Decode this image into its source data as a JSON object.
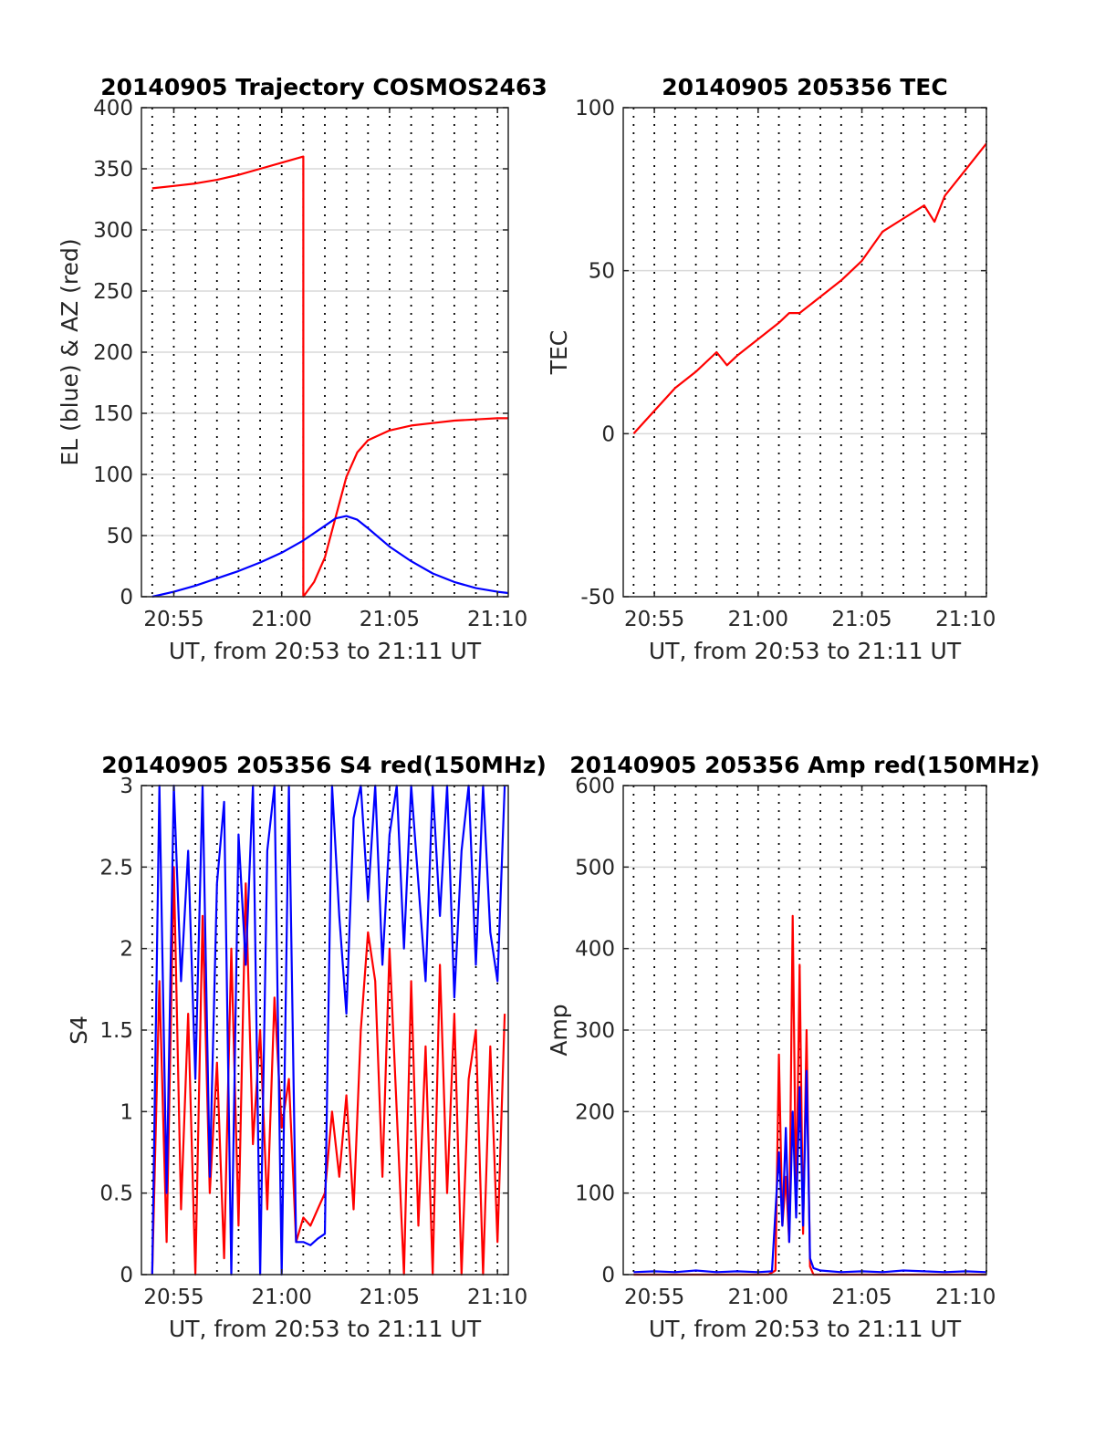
{
  "figure": {
    "background": "#ffffff",
    "grid_color": "#d9d9d9",
    "vline_color": "#000000"
  },
  "chart_data": [
    {
      "id": "p1",
      "type": "line",
      "title": "20140905 Trajectory COSMOS2463",
      "xlabel": "UT, from 20:53 to 21:11 UT",
      "ylabel": "EL (blue) & AZ (red)",
      "xlim": [
        "20:53:30",
        "21:10:30"
      ],
      "ylim": [
        0,
        400
      ],
      "yticks": [
        "0",
        "50",
        "100",
        "150",
        "200",
        "250",
        "300",
        "350",
        "400"
      ],
      "xticks": [
        {
          "t": "20:55",
          "label": "20:55"
        },
        {
          "t": "21:00",
          "label": "21:00"
        },
        {
          "t": "21:05",
          "label": "21:05"
        },
        {
          "t": "21:10",
          "label": "21:10"
        }
      ],
      "grid": "horizontal",
      "vlines_minute": [
        "20:54",
        "21:10"
      ],
      "series": [
        {
          "color": "#ff0000",
          "x": [
            "20:54",
            "20:55",
            "20:56",
            "20:57",
            "20:58",
            "20:59",
            "21:00",
            "21:01",
            "21:01",
            "21:01:30",
            "21:02",
            "21:02:30",
            "21:03",
            "21:03:30",
            "21:04",
            "21:05",
            "21:06",
            "21:07",
            "21:08",
            "21:09",
            "21:10",
            "21:10:30"
          ],
          "y": [
            334,
            336,
            338,
            341,
            345,
            350,
            355,
            360,
            0,
            12,
            32,
            65,
            98,
            118,
            128,
            136,
            140,
            142,
            144,
            145,
            146,
            146
          ]
        },
        {
          "color": "#0000ff",
          "x": [
            "20:54",
            "20:55",
            "20:56",
            "20:57",
            "20:58",
            "20:59",
            "21:00",
            "21:01",
            "21:02",
            "21:02:30",
            "21:03",
            "21:03:30",
            "21:04",
            "21:05",
            "21:06",
            "21:07",
            "21:08",
            "21:09",
            "21:10",
            "21:10:30"
          ],
          "y": [
            0,
            4,
            9,
            15,
            21,
            28,
            36,
            46,
            58,
            64,
            66,
            63,
            56,
            41,
            29,
            19,
            12,
            7,
            4,
            3
          ]
        }
      ]
    },
    {
      "id": "p2",
      "type": "line",
      "title": "20140905 205356 TEC",
      "xlabel": "UT, from 20:53 to 21:11 UT",
      "ylabel": "TEC",
      "xlim": [
        "20:53:30",
        "21:11:00"
      ],
      "ylim": [
        -50,
        100
      ],
      "yticks": [
        "-50",
        "0",
        "50",
        "100"
      ],
      "xticks": [
        {
          "t": "20:55",
          "label": "20:55"
        },
        {
          "t": "21:00",
          "label": "21:00"
        },
        {
          "t": "21:05",
          "label": "21:05"
        },
        {
          "t": "21:10",
          "label": "21:10"
        }
      ],
      "grid": "horizontal",
      "vlines_minute": [
        "20:54",
        "21:11"
      ],
      "series": [
        {
          "color": "#ff0000",
          "x": [
            "20:54",
            "20:55",
            "20:56",
            "20:57",
            "20:58",
            "20:58:30",
            "20:59",
            "21:00",
            "21:01",
            "21:01:30",
            "21:02",
            "21:03",
            "21:04",
            "21:05",
            "21:06",
            "21:07",
            "21:08",
            "21:08:30",
            "21:09",
            "21:10",
            "21:11"
          ],
          "y": [
            0,
            7,
            14,
            19,
            25,
            21,
            24,
            29,
            34,
            37,
            37,
            42,
            47,
            53,
            62,
            66,
            70,
            65,
            73,
            81,
            89
          ]
        }
      ]
    },
    {
      "id": "p3",
      "type": "line",
      "title": "20140905 205356 S4 red(150MHz)",
      "xlabel": "UT, from 20:53 to 21:11 UT",
      "ylabel": "S4",
      "xlim": [
        "20:53:30",
        "21:10:30"
      ],
      "ylim": [
        0,
        3
      ],
      "yticks": [
        "0",
        "0.5",
        "1",
        "1.5",
        "2",
        "2.5",
        "3"
      ],
      "xticks": [
        {
          "t": "20:55",
          "label": "20:55"
        },
        {
          "t": "21:00",
          "label": "21:00"
        },
        {
          "t": "21:05",
          "label": "21:05"
        },
        {
          "t": "21:10",
          "label": "21:10"
        }
      ],
      "grid": "horizontal",
      "vlines_minute": [
        "20:54",
        "21:10"
      ],
      "series": [
        {
          "color": "#ff0000",
          "x": [
            "20:54",
            "20:54:20",
            "20:54:40",
            "20:55",
            "20:55:20",
            "20:55:40",
            "20:56",
            "20:56:20",
            "20:56:40",
            "20:57",
            "20:57:20",
            "20:57:40",
            "20:58",
            "20:58:20",
            "20:58:40",
            "20:59",
            "20:59:20",
            "20:59:40",
            "21:00",
            "21:00:20",
            "21:00:40",
            "21:01",
            "21:01:20",
            "21:01:40",
            "21:02",
            "21:02:20",
            "21:02:40",
            "21:03",
            "21:03:20",
            "21:03:40",
            "21:04",
            "21:04:20",
            "21:04:40",
            "21:05",
            "21:05:20",
            "21:05:40",
            "21:06",
            "21:06:20",
            "21:06:40",
            "21:07",
            "21:07:20",
            "21:07:40",
            "21:08",
            "21:08:20",
            "21:08:40",
            "21:09",
            "21:09:20",
            "21:09:40",
            "21:10",
            "21:10:20"
          ],
          "y": [
            0,
            1.8,
            0.2,
            2.5,
            0.4,
            1.6,
            0,
            2.2,
            0.5,
            1.3,
            0.1,
            2.0,
            0.3,
            2.4,
            0.8,
            1.5,
            0.4,
            1.7,
            0.9,
            1.2,
            0.2,
            0.35,
            0.3,
            0.4,
            0.5,
            1.0,
            0.6,
            1.1,
            0.4,
            1.5,
            2.1,
            1.8,
            0.6,
            2.0,
            1.0,
            0,
            1.8,
            0.3,
            1.4,
            0,
            1.9,
            0.5,
            1.6,
            0,
            1.2,
            1.5,
            0,
            1.4,
            0.2,
            1.6
          ]
        },
        {
          "color": "#0000ff",
          "x": [
            "20:54",
            "20:54:20",
            "20:54:40",
            "20:55",
            "20:55:20",
            "20:55:40",
            "20:56",
            "20:56:20",
            "20:56:40",
            "20:57",
            "20:57:20",
            "20:57:40",
            "20:58",
            "20:58:20",
            "20:58:40",
            "20:59",
            "20:59:20",
            "20:59:40",
            "21:00",
            "21:00:20",
            "21:00:40",
            "21:01",
            "21:01:20",
            "21:01:40",
            "21:02",
            "21:02:20",
            "21:02:40",
            "21:03",
            "21:03:20",
            "21:03:40",
            "21:04",
            "21:04:20",
            "21:04:40",
            "21:05",
            "21:05:20",
            "21:05:40",
            "21:06",
            "21:06:20",
            "21:06:40",
            "21:07",
            "21:07:20",
            "21:07:40",
            "21:08",
            "21:08:20",
            "21:08:40",
            "21:09",
            "21:09:20",
            "21:09:40",
            "21:10",
            "21:10:20"
          ],
          "y": [
            0,
            3,
            0.5,
            3,
            1.8,
            2.6,
            1.2,
            3,
            0.6,
            2.4,
            2.9,
            0,
            2.7,
            1.9,
            3,
            0,
            2.6,
            3,
            0,
            3,
            0.2,
            0.2,
            0.18,
            0.22,
            0.25,
            3,
            2.2,
            1.6,
            2.8,
            3,
            2.3,
            3,
            1.9,
            2.7,
            3,
            2.0,
            3,
            2.4,
            1.8,
            3,
            2.2,
            3,
            1.7,
            2.6,
            3,
            1.9,
            3,
            2.1,
            1.8,
            3
          ]
        }
      ]
    },
    {
      "id": "p4",
      "type": "line",
      "title": "20140905 205356 Amp red(150MHz)",
      "xlabel": "UT, from 20:53 to 21:11 UT",
      "ylabel": "Amp",
      "xlim": [
        "20:53:30",
        "21:11:00"
      ],
      "ylim": [
        0,
        600
      ],
      "yticks": [
        "0",
        "100",
        "200",
        "300",
        "400",
        "500",
        "600"
      ],
      "xticks": [
        {
          "t": "20:55",
          "label": "20:55"
        },
        {
          "t": "21:00",
          "label": "21:00"
        },
        {
          "t": "21:05",
          "label": "21:05"
        },
        {
          "t": "21:10",
          "label": "21:10"
        }
      ],
      "grid": "horizontal",
      "vlines_minute": [
        "20:54",
        "21:11"
      ],
      "series": [
        {
          "color": "#ff0000",
          "x": [
            "20:54",
            "20:58",
            "21:00:30",
            "21:00:50",
            "21:01:00",
            "21:01:10",
            "21:01:20",
            "21:01:30",
            "21:01:40",
            "21:01:50",
            "21:02:00",
            "21:02:10",
            "21:02:20",
            "21:02:30",
            "21:02:40",
            "21:05",
            "21:08",
            "21:11"
          ],
          "y": [
            0,
            0,
            0,
            5,
            270,
            60,
            120,
            40,
            440,
            80,
            380,
            50,
            300,
            10,
            0,
            0,
            0,
            0
          ]
        },
        {
          "color": "#0000ff",
          "x": [
            "20:54",
            "20:55",
            "20:56",
            "20:57",
            "20:58",
            "20:59",
            "21:00",
            "21:00:40",
            "21:01:00",
            "21:01:10",
            "21:01:20",
            "21:01:30",
            "21:01:40",
            "21:01:50",
            "21:02:00",
            "21:02:10",
            "21:02:20",
            "21:02:30",
            "21:02:40",
            "21:03",
            "21:04",
            "21:05",
            "21:06",
            "21:07",
            "21:08",
            "21:09",
            "21:10",
            "21:11"
          ],
          "y": [
            3,
            4,
            3,
            5,
            3,
            4,
            3,
            4,
            150,
            60,
            180,
            40,
            200,
            70,
            230,
            60,
            250,
            20,
            8,
            5,
            3,
            4,
            3,
            5,
            4,
            3,
            4,
            3
          ]
        }
      ]
    }
  ]
}
